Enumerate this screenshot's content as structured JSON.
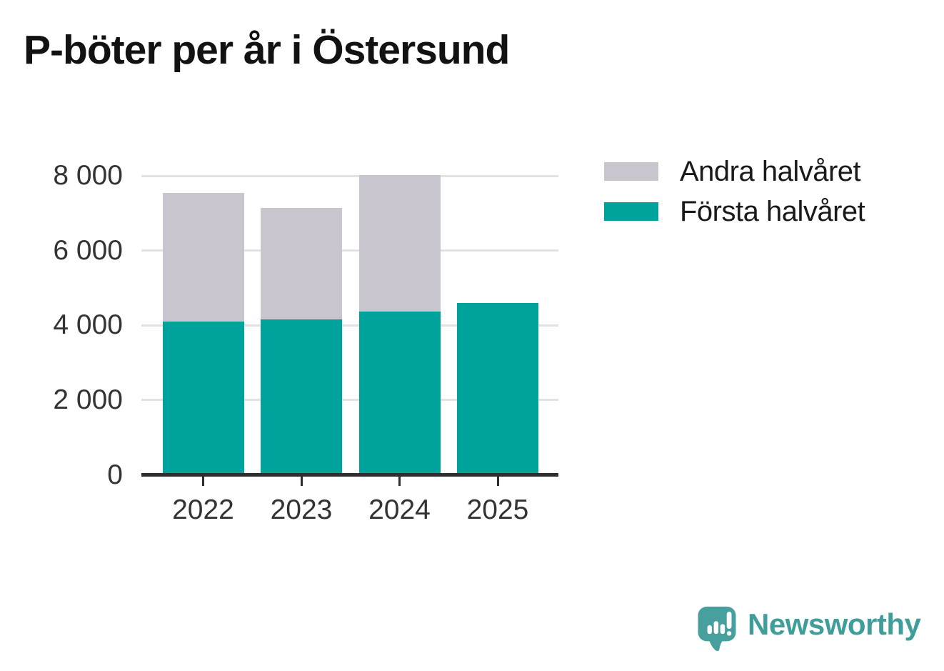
{
  "title": "P-böter per år i Östersund",
  "legend": {
    "items": [
      {
        "label": "Andra halvåret",
        "color": "#c8c5ce"
      },
      {
        "label": "Första halvåret",
        "color": "#00a39b"
      }
    ]
  },
  "chart_data": {
    "type": "bar",
    "stacked": true,
    "title": "P-böter per år i Östersund",
    "categories": [
      "2022",
      "2023",
      "2024",
      "2025"
    ],
    "series": [
      {
        "name": "Första halvåret",
        "color": "#00a39b",
        "values": [
          4100,
          4150,
          4370,
          4590
        ]
      },
      {
        "name": "Andra halvåret",
        "color": "#c8c5ce",
        "values": [
          3450,
          2990,
          3650,
          null
        ]
      }
    ],
    "totals": [
      7550,
      7140,
      8020,
      4590
    ],
    "xlabel": "",
    "ylabel": "",
    "ylim": [
      0,
      8000
    ],
    "yticks": [
      0,
      2000,
      4000,
      6000,
      8000
    ],
    "ytick_labels": [
      "0",
      "2 000",
      "4 000",
      "6 000",
      "8 000"
    ],
    "grid": true,
    "gridline_values": [
      2000,
      4000,
      6000,
      8000
    ],
    "legend_position": "top-right"
  },
  "colors": {
    "first_half": "#00a39b",
    "second_half": "#c8c5ce",
    "gridline": "#e3e1e5",
    "axis": "#2e2e2e",
    "tick_label": "#333333",
    "title": "#121212",
    "legend_text": "#1a1a1a",
    "background": "#ffffff"
  },
  "branding": {
    "wordmark": "Newsworthy",
    "wordmark_color": "#3f9d9a",
    "mark_color": "#47a09e",
    "mark_icon": "speech-bubble-bar-chart-exclamation"
  }
}
